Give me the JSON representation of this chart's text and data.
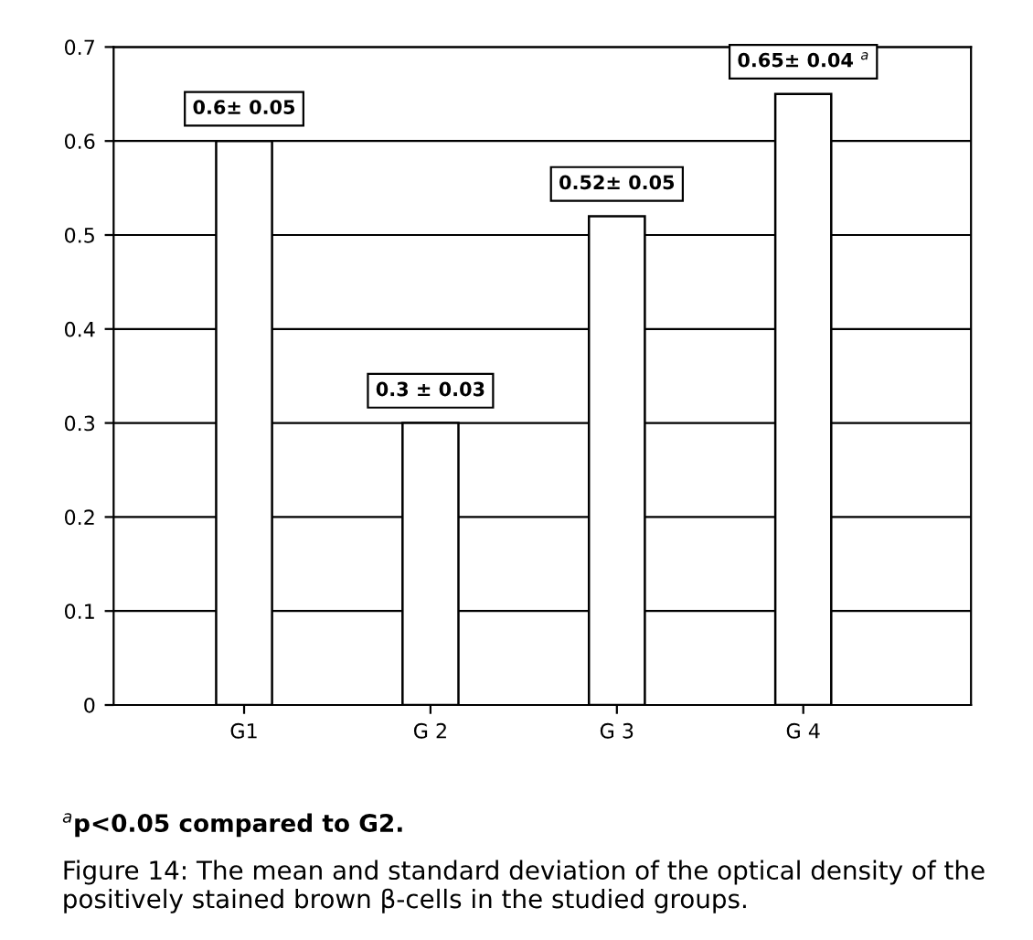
{
  "chart_data": {
    "type": "bar",
    "categories": [
      "G1",
      "G 2",
      "G 3",
      "G 4"
    ],
    "values": [
      0.6,
      0.3,
      0.52,
      0.65
    ],
    "value_labels": [
      "0.6± 0.05",
      "0.3 ± 0.03",
      "0.52± 0.05",
      "0.65± 0.04 $^{a}$"
    ],
    "color": "#ffffff",
    "ylim": [
      0,
      0.7
    ],
    "yticks": [
      0,
      0.1,
      0.2,
      0.3,
      0.4,
      0.5,
      0.6,
      0.7
    ],
    "grid": "y",
    "annotations": [
      "$^{a}$p<0.05 compared to G2.",
      "Figure 14: The mean and standard deviation of the optical density of the positively stained brown β-cells in the studied groups."
    ]
  }
}
